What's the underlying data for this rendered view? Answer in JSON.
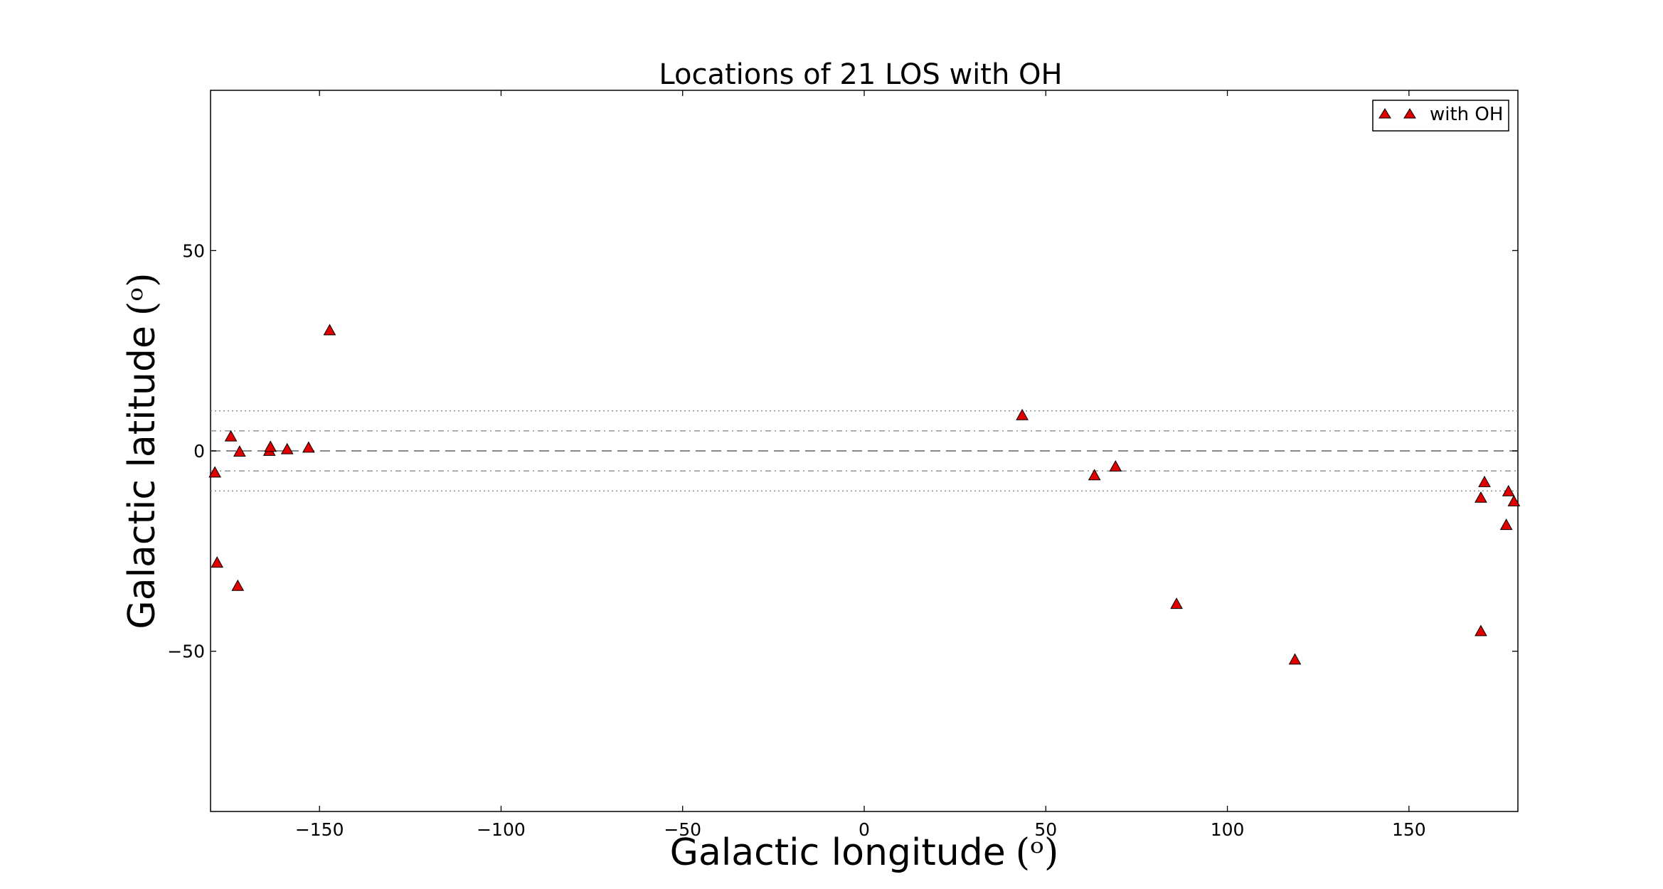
{
  "chart_data": {
    "type": "scatter",
    "title": "Locations of 21 LOS with OH",
    "xlabel": "Galactic longitude",
    "xlabel_unit": "(ᵒ)",
    "ylabel": "Galactic latitude",
    "ylabel_unit": "(ᵒ)",
    "xlim": [
      -180,
      180
    ],
    "ylim": [
      -90,
      90
    ],
    "xticks": [
      -150,
      -100,
      -50,
      0,
      50,
      100,
      150
    ],
    "yticks": [
      -50,
      0,
      50
    ],
    "xtick_labels": [
      "−150",
      "−100",
      "−50",
      "0",
      "50",
      "100",
      "150"
    ],
    "ytick_labels": [
      "−50",
      "0",
      "50"
    ],
    "grid": false,
    "legend": {
      "position": "top-right",
      "entries": [
        "with OH"
      ]
    },
    "reference_lines": [
      {
        "y": 0,
        "style": "dashed"
      },
      {
        "y": 5,
        "style": "dashdot"
      },
      {
        "y": -5,
        "style": "dashdot"
      },
      {
        "y": 10,
        "style": "dotted"
      },
      {
        "y": -10,
        "style": "dotted"
      }
    ],
    "series": [
      {
        "name": "with OH",
        "marker": "triangle",
        "color": "#e00000",
        "points": [
          {
            "x": -178.8,
            "y": -5.4
          },
          {
            "x": -178.2,
            "y": -27.9
          },
          {
            "x": -174.4,
            "y": 3.6
          },
          {
            "x": -172.0,
            "y": -0.2
          },
          {
            "x": -172.5,
            "y": -33.7
          },
          {
            "x": -163.8,
            "y": 0.0
          },
          {
            "x": -163.5,
            "y": 1.0
          },
          {
            "x": -158.9,
            "y": 0.4
          },
          {
            "x": -153.0,
            "y": 0.8
          },
          {
            "x": -147.2,
            "y": 30.1
          },
          {
            "x": 43.5,
            "y": 8.9
          },
          {
            "x": 63.4,
            "y": -6.1
          },
          {
            "x": 69.2,
            "y": -3.9
          },
          {
            "x": 86.0,
            "y": -38.2
          },
          {
            "x": 118.6,
            "y": -52.1
          },
          {
            "x": 169.8,
            "y": -11.7
          },
          {
            "x": 170.8,
            "y": -7.8
          },
          {
            "x": 169.8,
            "y": -45.0
          },
          {
            "x": 176.8,
            "y": -18.5
          },
          {
            "x": 177.4,
            "y": -10.1
          },
          {
            "x": 178.9,
            "y": -12.6
          }
        ]
      }
    ]
  },
  "colors": {
    "marker_fill": "#e00000",
    "marker_edge": "#000000",
    "reference_line": "#888888"
  }
}
